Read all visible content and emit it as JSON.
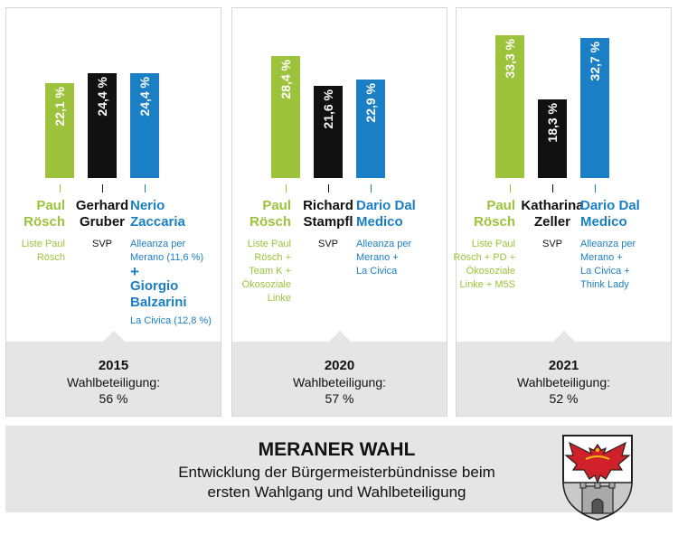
{
  "colors": {
    "green": "#9cc33b",
    "black": "#111111",
    "blue": "#1a7fc4"
  },
  "chart_data": [
    {
      "type": "bar",
      "year": "2015",
      "turnout_label": "Wahlbeteiligung:",
      "turnout": "56 %",
      "values": [
        22.1,
        24.4,
        24.4
      ],
      "value_labels": [
        "22,1 %",
        "24,4 %",
        "24,4 %"
      ],
      "candidates": [
        {
          "lines": [
            "Paul",
            "Rösch"
          ],
          "alliance": [
            "Liste Paul",
            "Rösch"
          ],
          "color": "green",
          "align": "right"
        },
        {
          "lines": [
            "Gerhard",
            "Gruber"
          ],
          "alliance": [
            "SVP"
          ],
          "color": "black",
          "align": "center"
        },
        {
          "lines": [
            "Nerio",
            "Zaccaria"
          ],
          "alliance": [
            "Alleanza per",
            "Merano (11,6 %)"
          ],
          "color": "blue",
          "align": "left",
          "extra": {
            "plus": "+",
            "lines": [
              "Giorgio",
              "Balzarini"
            ],
            "alliance": [
              "La Civica (12,8 %)"
            ]
          }
        }
      ]
    },
    {
      "type": "bar",
      "year": "2020",
      "turnout_label": "Wahlbeteiligung:",
      "turnout": "57 %",
      "values": [
        28.4,
        21.6,
        22.9
      ],
      "value_labels": [
        "28,4 %",
        "21,6 %",
        "22,9 %"
      ],
      "candidates": [
        {
          "lines": [
            "Paul",
            "Rösch"
          ],
          "alliance": [
            "Liste Paul",
            "Rösch +",
            "Team K +",
            "Ökosoziale",
            "Linke"
          ],
          "color": "green",
          "align": "right"
        },
        {
          "lines": [
            "Richard",
            "Stampfl"
          ],
          "alliance": [
            "SVP"
          ],
          "color": "black",
          "align": "center"
        },
        {
          "lines": [
            "Dario Dal",
            "Medico"
          ],
          "alliance": [
            "Alleanza per",
            "Merano +",
            "La Civica"
          ],
          "color": "blue",
          "align": "left"
        }
      ]
    },
    {
      "type": "bar",
      "year": "2021",
      "turnout_label": "Wahlbeteiligung:",
      "turnout": "52 %",
      "values": [
        33.3,
        18.3,
        32.7
      ],
      "value_labels": [
        "33,3 %",
        "18,3 %",
        "32,7 %"
      ],
      "candidates": [
        {
          "lines": [
            "Paul",
            "Rösch"
          ],
          "alliance": [
            "Liste Paul",
            "Rösch + PD +",
            "Ökosoziale",
            "Linke + M5S"
          ],
          "color": "green",
          "align": "right"
        },
        {
          "lines": [
            "Katharina",
            "Zeller"
          ],
          "alliance": [
            "SVP"
          ],
          "color": "black",
          "align": "center"
        },
        {
          "lines": [
            "Dario Dal",
            "Medico"
          ],
          "alliance": [
            "Alleanza per",
            "Merano +",
            "La Civica +",
            "Think Lady"
          ],
          "color": "blue",
          "align": "left"
        }
      ]
    }
  ],
  "banner": {
    "title": "MERANER WAHL",
    "subtitle_line1": "Entwicklung der Bürgermeisterbündnisse beim",
    "subtitle_line2": "ersten Wahlgang und Wahlbeteiligung"
  },
  "crest_icon": "eagle-coat-of-arms-icon"
}
